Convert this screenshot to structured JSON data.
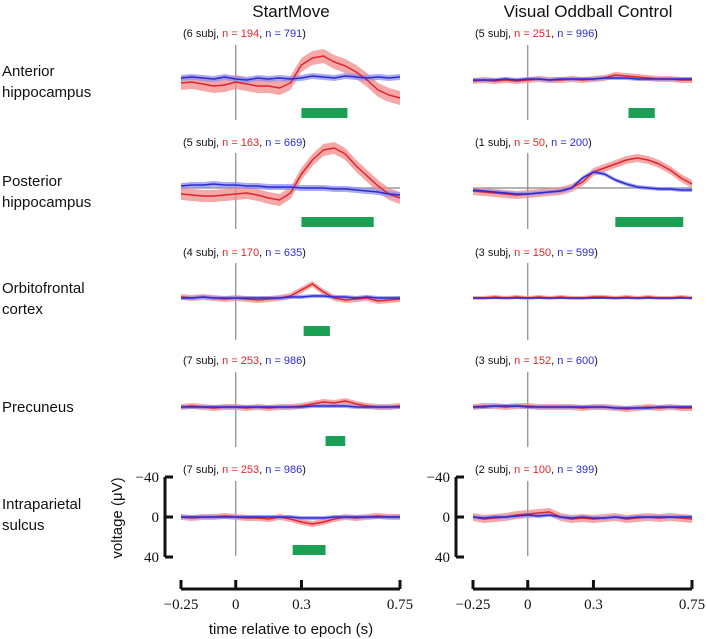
{
  "chart_data": {
    "type": "line",
    "columns": [
      "StartMove",
      "Visual Oddball Control"
    ],
    "rows": [
      "Anterior hippocampus",
      "Posterior hippocampus",
      "Orbitofrontal cortex",
      "Precuneus",
      "Intraparietal sulcus"
    ],
    "xlabel": "time relative to epoch (s)",
    "ylabel": "voltage (μV)",
    "xlim": [
      -0.25,
      0.75
    ],
    "ylim": [
      40,
      -40
    ],
    "xticks": [
      -0.25,
      0,
      0.3,
      0.75
    ],
    "xtick_labels": [
      "−0.25",
      "0",
      "0.3",
      "0.75"
    ],
    "yticks": [
      -40,
      0,
      40
    ],
    "ytick_labels": [
      "−40",
      "0",
      "40"
    ],
    "series_colors": {
      "red": "#e3242b",
      "blue": "#2b2bd6",
      "red_band": "#f28b8b",
      "blue_band": "#8f8ff0",
      "significance": "#19a055"
    },
    "panels": [
      {
        "row": 0,
        "col": 0,
        "subj": "(6 subj, ",
        "n_red": "n = 194",
        "n_blue": "n = 791",
        "hline": false,
        "x": [
          -0.25,
          -0.2,
          -0.15,
          -0.1,
          -0.05,
          0,
          0.05,
          0.1,
          0.15,
          0.2,
          0.25,
          0.3,
          0.35,
          0.4,
          0.45,
          0.5,
          0.55,
          0.6,
          0.65,
          0.7,
          0.75
        ],
        "red": [
          3,
          2,
          4,
          6,
          5,
          2,
          4,
          6,
          6,
          8,
          3,
          -15,
          -22,
          -24,
          -18,
          -14,
          -8,
          0,
          10,
          15,
          18
        ],
        "blue": [
          -2,
          -3,
          -2,
          -1,
          -3,
          -1,
          0,
          -2,
          -1,
          -2,
          -1,
          -2,
          -4,
          -3,
          -2,
          -4,
          -3,
          -2,
          -3,
          -2,
          -3
        ],
        "red_err": 7,
        "blue_err": 3,
        "sig": [
          0.3,
          0.51
        ]
      },
      {
        "row": 0,
        "col": 1,
        "subj": "(5 subj, ",
        "n_red": "n = 251",
        "n_blue": "n = 996",
        "hline": false,
        "x": [
          -0.25,
          -0.2,
          -0.15,
          -0.1,
          -0.05,
          0,
          0.05,
          0.1,
          0.15,
          0.2,
          0.25,
          0.3,
          0.35,
          0.4,
          0.45,
          0.5,
          0.55,
          0.6,
          0.65,
          0.7,
          0.75
        ],
        "red": [
          1,
          0,
          1,
          0,
          1,
          0,
          -1,
          0,
          0,
          -1,
          0,
          -1,
          -2,
          -5,
          -4,
          -3,
          -2,
          -1,
          -1,
          0,
          0
        ],
        "blue": [
          0,
          0,
          0,
          -1,
          0,
          -1,
          -1,
          0,
          -1,
          -1,
          -1,
          -1,
          -2,
          -2,
          -2,
          -1,
          -1,
          -1,
          -1,
          -1,
          -1
        ],
        "red_err": 3,
        "blue_err": 2,
        "sig": [
          0.46,
          0.58
        ]
      },
      {
        "row": 1,
        "col": 0,
        "subj": "(5 subj, ",
        "n_red": "n = 163",
        "n_blue": "n = 669",
        "hline": true,
        "x": [
          -0.25,
          -0.2,
          -0.15,
          -0.1,
          -0.05,
          0,
          0.05,
          0.1,
          0.15,
          0.2,
          0.25,
          0.3,
          0.35,
          0.4,
          0.45,
          0.5,
          0.55,
          0.6,
          0.65,
          0.7,
          0.75
        ],
        "red": [
          6,
          7,
          8,
          8,
          7,
          6,
          5,
          7,
          10,
          12,
          5,
          -14,
          -28,
          -38,
          -40,
          -34,
          -22,
          -12,
          -2,
          6,
          10
        ],
        "blue": [
          -2,
          -3,
          -3,
          -4,
          -3,
          -3,
          -2,
          -2,
          -1,
          -1,
          -1,
          0,
          0,
          0,
          1,
          1,
          2,
          3,
          4,
          6,
          7
        ],
        "red_err": 6,
        "blue_err": 3,
        "sig": [
          0.3,
          0.63
        ]
      },
      {
        "row": 1,
        "col": 1,
        "subj": "(1 subj, ",
        "n_red": "n = 50",
        "n_blue": "n = 200",
        "hline": true,
        "x": [
          -0.25,
          -0.2,
          -0.15,
          -0.1,
          -0.05,
          0,
          0.05,
          0.1,
          0.15,
          0.2,
          0.25,
          0.3,
          0.35,
          0.4,
          0.45,
          0.5,
          0.55,
          0.6,
          0.65,
          0.7,
          0.75
        ],
        "red": [
          3,
          4,
          5,
          6,
          7,
          6,
          5,
          4,
          3,
          0,
          -6,
          -16,
          -20,
          -24,
          -28,
          -30,
          -28,
          -24,
          -18,
          -10,
          -4
        ],
        "blue": [
          2,
          3,
          4,
          5,
          6,
          6,
          5,
          4,
          3,
          0,
          -10,
          -16,
          -14,
          -8,
          -4,
          -1,
          0,
          1,
          1,
          2,
          2
        ],
        "red_err": 4,
        "blue_err": 2,
        "sig": [
          0.4,
          0.71
        ]
      },
      {
        "row": 2,
        "col": 0,
        "subj": "(4 subj, ",
        "n_red": "n = 170",
        "n_blue": "n = 635",
        "hline": false,
        "x": [
          -0.25,
          -0.2,
          -0.15,
          -0.1,
          -0.05,
          0,
          0.05,
          0.1,
          0.15,
          0.2,
          0.25,
          0.3,
          0.35,
          0.4,
          0.45,
          0.5,
          0.55,
          0.6,
          0.65,
          0.7,
          0.75
        ],
        "red": [
          -1,
          0,
          -1,
          0,
          1,
          0,
          1,
          2,
          1,
          0,
          -2,
          -8,
          -14,
          -6,
          0,
          2,
          1,
          0,
          3,
          2,
          1
        ],
        "blue": [
          0,
          0,
          -1,
          0,
          0,
          0,
          0,
          0,
          0,
          0,
          -1,
          -1,
          -2,
          -2,
          -1,
          -1,
          0,
          -1,
          0,
          0,
          0
        ],
        "red_err": 3,
        "blue_err": 2,
        "sig": [
          0.31,
          0.43
        ]
      },
      {
        "row": 2,
        "col": 1,
        "subj": "(3 subj, ",
        "n_red": "n = 150",
        "n_blue": "n = 599",
        "hline": false,
        "x": [
          -0.25,
          -0.2,
          -0.15,
          -0.1,
          -0.05,
          0,
          0.05,
          0.1,
          0.15,
          0.2,
          0.25,
          0.3,
          0.35,
          0.4,
          0.45,
          0.5,
          0.55,
          0.6,
          0.65,
          0.7,
          0.75
        ],
        "red": [
          0,
          0,
          -1,
          0,
          -1,
          0,
          -1,
          0,
          -1,
          0,
          0,
          -1,
          -1,
          0,
          -1,
          0,
          -1,
          0,
          0,
          -1,
          0
        ],
        "blue": [
          0,
          0,
          0,
          0,
          0,
          0,
          0,
          0,
          0,
          0,
          0,
          0,
          0,
          0,
          0,
          0,
          0,
          0,
          0,
          0,
          0
        ],
        "red_err": 2,
        "blue_err": 1,
        "sig": null
      },
      {
        "row": 3,
        "col": 0,
        "subj": "(7 subj, ",
        "n_red": "n = 253",
        "n_blue": "n = 986",
        "hline": false,
        "x": [
          -0.25,
          -0.2,
          -0.15,
          -0.1,
          -0.05,
          0,
          0.05,
          0.1,
          0.15,
          0.2,
          0.25,
          0.3,
          0.35,
          0.4,
          0.45,
          0.5,
          0.55,
          0.6,
          0.65,
          0.7,
          0.75
        ],
        "red": [
          0,
          -1,
          0,
          1,
          0,
          0,
          1,
          0,
          1,
          0,
          0,
          -1,
          -3,
          -5,
          -4,
          -6,
          -3,
          -1,
          0,
          0,
          -1
        ],
        "blue": [
          0,
          0,
          0,
          0,
          0,
          0,
          0,
          0,
          0,
          0,
          0,
          0,
          -1,
          -1,
          -1,
          -1,
          0,
          0,
          0,
          0,
          0
        ],
        "red_err": 3,
        "blue_err": 2,
        "sig": [
          0.41,
          0.5
        ]
      },
      {
        "row": 3,
        "col": 1,
        "subj": "(3 subj, ",
        "n_red": "n = 152",
        "n_blue": "n = 600",
        "hline": false,
        "x": [
          -0.25,
          -0.2,
          -0.15,
          -0.1,
          -0.05,
          0,
          0.05,
          0.1,
          0.15,
          0.2,
          0.25,
          0.3,
          0.35,
          0.4,
          0.45,
          0.5,
          0.55,
          0.6,
          0.65,
          0.7,
          0.75
        ],
        "red": [
          0,
          -1,
          -1,
          0,
          -1,
          -1,
          0,
          0,
          0,
          0,
          1,
          0,
          0,
          1,
          2,
          1,
          0,
          1,
          0,
          1,
          1
        ],
        "blue": [
          0,
          0,
          -1,
          -1,
          -1,
          0,
          0,
          0,
          0,
          0,
          0,
          0,
          0,
          1,
          1,
          1,
          1,
          0,
          0,
          0,
          0
        ],
        "red_err": 3,
        "blue_err": 2,
        "sig": null
      },
      {
        "row": 4,
        "col": 0,
        "subj": "(7 subj, ",
        "n_red": "n = 253",
        "n_blue": "n = 986",
        "hline": false,
        "x": [
          -0.25,
          -0.2,
          -0.15,
          -0.1,
          -0.05,
          0,
          0.05,
          0.1,
          0.15,
          0.2,
          0.25,
          0.3,
          0.35,
          0.4,
          0.45,
          0.5,
          0.55,
          0.6,
          0.65,
          0.7,
          0.75
        ],
        "red": [
          0,
          1,
          0,
          0,
          -1,
          0,
          1,
          1,
          2,
          0,
          2,
          5,
          7,
          5,
          2,
          0,
          1,
          0,
          -1,
          0,
          0
        ],
        "blue": [
          0,
          0,
          0,
          0,
          0,
          0,
          0,
          0,
          0,
          0,
          0,
          1,
          1,
          1,
          0,
          0,
          0,
          0,
          0,
          0,
          0
        ],
        "red_err": 3,
        "blue_err": 2,
        "sig": [
          0.26,
          0.41
        ]
      },
      {
        "row": 4,
        "col": 1,
        "subj": "(2 subj, ",
        "n_red": "n = 100",
        "n_blue": "n = 399",
        "hline": false,
        "x": [
          -0.25,
          -0.2,
          -0.15,
          -0.1,
          -0.05,
          0,
          0.05,
          0.1,
          0.15,
          0.2,
          0.25,
          0.3,
          0.35,
          0.4,
          0.45,
          0.5,
          0.55,
          0.6,
          0.65,
          0.7,
          0.75
        ],
        "red": [
          0,
          2,
          1,
          0,
          -2,
          -3,
          -4,
          -5,
          0,
          2,
          1,
          2,
          1,
          0,
          2,
          1,
          0,
          1,
          0,
          1,
          2
        ],
        "blue": [
          0,
          1,
          0,
          0,
          -1,
          -2,
          -1,
          -2,
          0,
          1,
          0,
          1,
          1,
          0,
          1,
          0,
          0,
          0,
          0,
          0,
          0
        ],
        "red_err": 4,
        "blue_err": 2,
        "sig": null
      }
    ]
  }
}
